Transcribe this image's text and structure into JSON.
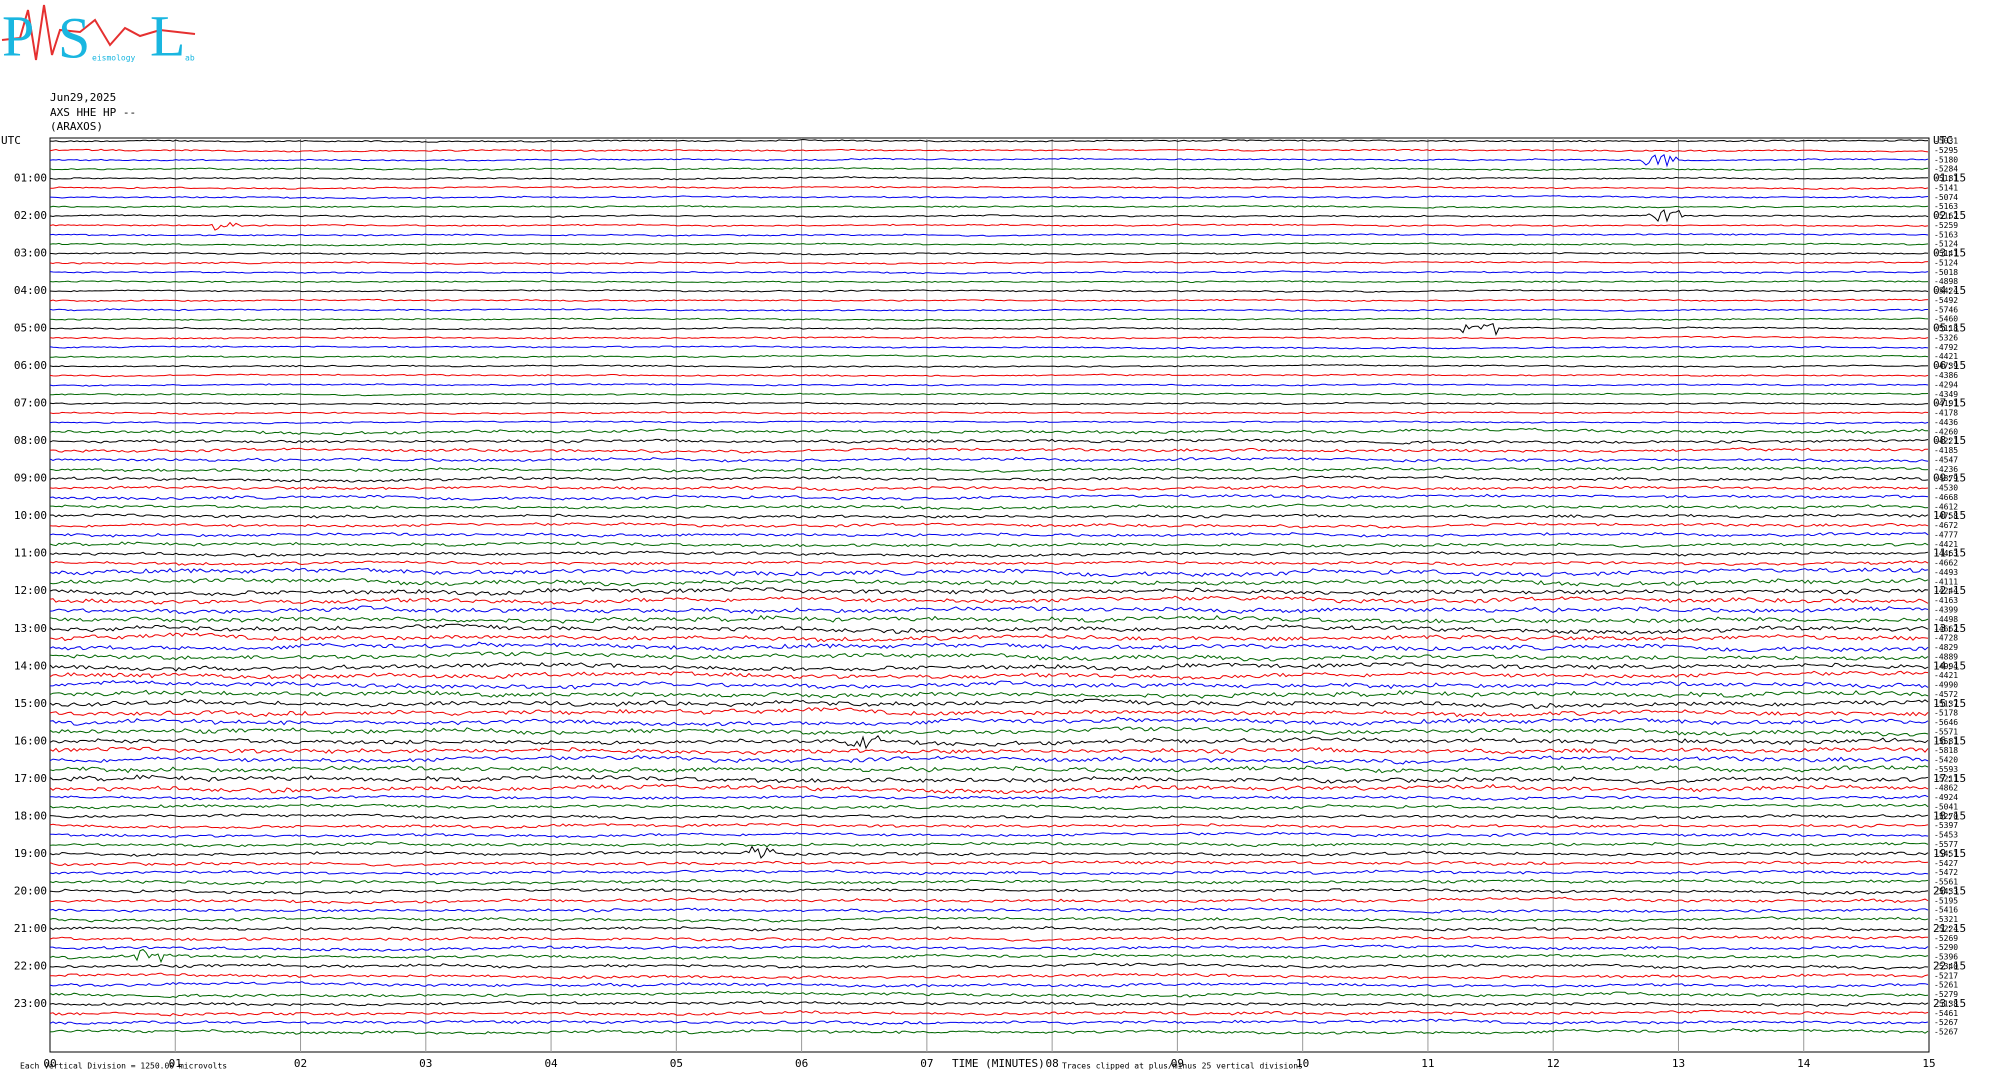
{
  "logo": {
    "letters": [
      "P",
      "S",
      "L"
    ],
    "small": [
      "eismology",
      "ab"
    ]
  },
  "header": [
    "Jun29,2025",
    "AXS HHE HP --",
    "(ARAXOS)"
  ],
  "left_labels": [
    "UTC",
    "01:00",
    "02:00",
    "03:00",
    "04:00",
    "05:00",
    "06:00",
    "07:00",
    "08:00",
    "09:00",
    "10:00",
    "11:00",
    "12:00",
    "13:00",
    "14:00",
    "15:00",
    "16:00",
    "17:00",
    "18:00",
    "19:00",
    "20:00",
    "21:00",
    "22:00",
    "23:00"
  ],
  "right_labels": [
    "UTC",
    "01:15",
    "02:15",
    "03:15",
    "04:15",
    "05:15",
    "06:15",
    "07:15",
    "08:15",
    "09:15",
    "10:15",
    "11:15",
    "12:15",
    "13:15",
    "14:15",
    "15:15",
    "16:15",
    "17:15",
    "18:15",
    "19:15",
    "20:15",
    "21:15",
    "22:15",
    "23:15"
  ],
  "offsets": [
    "-5031",
    "-5295",
    "-5180",
    "-5284",
    "-5181",
    "-5141",
    "-5074",
    "-5163",
    "-5162",
    "-5259",
    "-5163",
    "-5124",
    "-5141",
    "-5124",
    "-5018",
    "-4898",
    "-5424",
    "-5492",
    "-5746",
    "-5460",
    "-5118",
    "-5326",
    "-4792",
    "-4421",
    "-4739",
    "-4386",
    "-4294",
    "-4349",
    "-4191",
    "-4178",
    "-4436",
    "-4260",
    "-4221",
    "-4185",
    "-4547",
    "-4236",
    "-4379",
    "-4530",
    "-4668",
    "-4612",
    "-4758",
    "-4672",
    "-4777",
    "-4421",
    "-4463",
    "-4662",
    "-4493",
    "-4111",
    "-4244",
    "-4163",
    "-4399",
    "-4498",
    "-4662",
    "-4728",
    "-4829",
    "-4889",
    "-4994",
    "-4421",
    "-4990",
    "-4572",
    "-5137",
    "-5178",
    "-5646",
    "-5571",
    "-5581",
    "-5818",
    "-5420",
    "-5593",
    "-5211",
    "-4862",
    "-4924",
    "-5041",
    "-5270",
    "-5397",
    "-5453",
    "-5577",
    "-5451",
    "-5427",
    "-5472",
    "-5561",
    "-5433",
    "-5195",
    "-5416",
    "-5321",
    "-5224",
    "-5269",
    "-5290",
    "-5396",
    "-5340",
    "-5217",
    "-5261",
    "-5279",
    "-5138",
    "-5461",
    "-5267",
    "-5267"
  ],
  "x_ticks": [
    "00",
    "01",
    "02",
    "03",
    "04",
    "05",
    "06",
    "07",
    "08",
    "09",
    "10",
    "11",
    "12",
    "13",
    "14",
    "15"
  ],
  "footer": {
    "division": "Each Vertical Division = 1250.00 microvolts",
    "x_label": "TIME (MINUTES)",
    "clip": "Traces clipped at plus/minus 25 vertical divisions"
  }
}
